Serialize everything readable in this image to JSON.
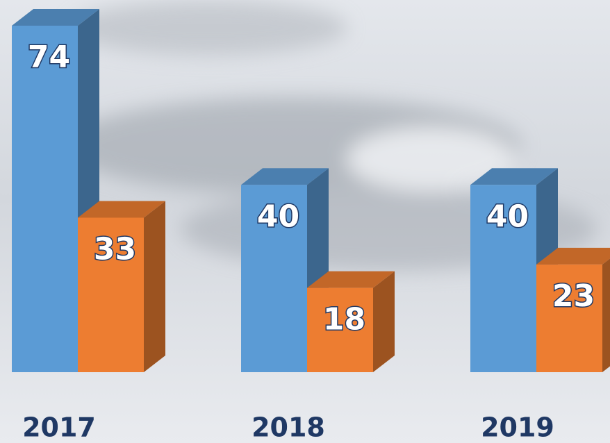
{
  "chart_data": {
    "type": "bar3d",
    "categories": [
      "2017",
      "2018",
      "2019"
    ],
    "series": [
      {
        "color": "#5b9bd5",
        "values": [
          74,
          40,
          40
        ]
      },
      {
        "color": "#ed7d31",
        "values": [
          33,
          18,
          23
        ]
      }
    ],
    "data_labels": true
  }
}
